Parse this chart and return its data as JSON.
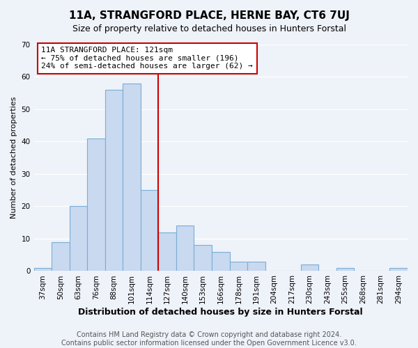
{
  "title": "11A, STRANGFORD PLACE, HERNE BAY, CT6 7UJ",
  "subtitle": "Size of property relative to detached houses in Hunters Forstal",
  "xlabel": "Distribution of detached houses by size in Hunters Forstal",
  "ylabel": "Number of detached properties",
  "bar_labels": [
    "37sqm",
    "50sqm",
    "63sqm",
    "76sqm",
    "88sqm",
    "101sqm",
    "114sqm",
    "127sqm",
    "140sqm",
    "153sqm",
    "166sqm",
    "178sqm",
    "191sqm",
    "204sqm",
    "217sqm",
    "230sqm",
    "243sqm",
    "255sqm",
    "268sqm",
    "281sqm",
    "294sqm"
  ],
  "bar_values": [
    1,
    9,
    20,
    41,
    56,
    58,
    25,
    12,
    14,
    8,
    6,
    3,
    3,
    0,
    0,
    2,
    0,
    1,
    0,
    0,
    1
  ],
  "bar_color": "#c8d9f0",
  "bar_edge_color": "#7aadd4",
  "vline_color": "#cc0000",
  "annotation_title": "11A STRANGFORD PLACE: 121sqm",
  "annotation_line1": "← 75% of detached houses are smaller (196)",
  "annotation_line2": "24% of semi-detached houses are larger (62) →",
  "annotation_box_color": "#ffffff",
  "annotation_box_edge": "#cc0000",
  "ylim": [
    0,
    70
  ],
  "yticks": [
    0,
    10,
    20,
    30,
    40,
    50,
    60,
    70
  ],
  "footer1": "Contains HM Land Registry data © Crown copyright and database right 2024.",
  "footer2": "Contains public sector information licensed under the Open Government Licence v3.0.",
  "bg_color": "#eef2f9",
  "plot_bg_color": "#eef2f9",
  "title_fontsize": 11,
  "subtitle_fontsize": 9,
  "xlabel_fontsize": 9,
  "ylabel_fontsize": 8,
  "tick_fontsize": 7.5,
  "footer_fontsize": 7,
  "annotation_fontsize": 8
}
